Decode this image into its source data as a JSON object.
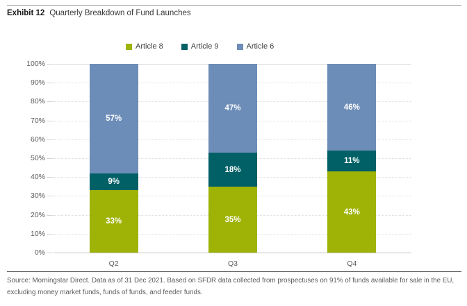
{
  "header": {
    "exhibit_label": "Exhibit 12",
    "title": "Quarterly Breakdown of Fund Launches"
  },
  "legend": [
    {
      "label": "Article 8",
      "color": "#9EB306"
    },
    {
      "label": "Article 9",
      "color": "#006066"
    },
    {
      "label": "Article 6",
      "color": "#6C8DB8"
    }
  ],
  "chart_data": {
    "type": "bar",
    "stacked": true,
    "orientation": "vertical",
    "categories": [
      "Q2",
      "Q3",
      "Q4"
    ],
    "series": [
      {
        "name": "Article 8",
        "color": "#9EB306",
        "values": [
          33,
          35,
          43
        ]
      },
      {
        "name": "Article 9",
        "color": "#006066",
        "values": [
          9,
          18,
          11
        ]
      },
      {
        "name": "Article 6",
        "color": "#6C8DB8",
        "values": [
          57,
          47,
          46
        ]
      }
    ],
    "value_suffix": "%",
    "ylim": [
      0,
      100
    ],
    "ytick_step": 10,
    "ytick_labels": [
      "0%",
      "10%",
      "20%",
      "30%",
      "40%",
      "50%",
      "60%",
      "70%",
      "80%",
      "90%",
      "100%"
    ],
    "grid": "horizontal-dashed",
    "legend_position": "top",
    "bar_label_color": "#ffffff"
  },
  "footer": {
    "source_line1": "Source: Morningstar Direct. Data as of 31 Dec 2021. Based on SFDR data collected from prospectuses on 91% of funds available for sale in the EU,",
    "source_line2": "excluding money market funds, funds of funds, and feeder funds."
  }
}
